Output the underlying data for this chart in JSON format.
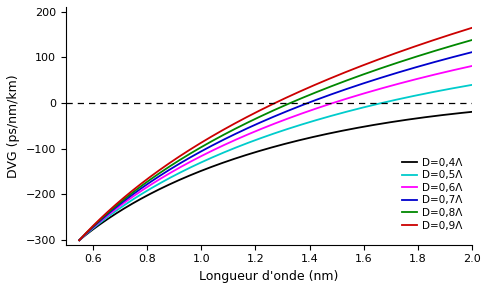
{
  "xlabel": "Longueur d'onde (nm)",
  "ylabel": "DVG (ps/nm/km)",
  "xlim": [
    0.5,
    2.0
  ],
  "ylim": [
    -310,
    210
  ],
  "yticks": [
    -300,
    -200,
    -100,
    0,
    100,
    200
  ],
  "xticks": [
    0.6,
    0.8,
    1.0,
    1.2,
    1.4,
    1.6,
    1.8,
    2.0
  ],
  "series": [
    {
      "label": "D=0,4Λ",
      "color": "#000000",
      "D": 0.4
    },
    {
      "label": "D=0,5Λ",
      "color": "#00cccc",
      "D": 0.5
    },
    {
      "label": "D=0,6Λ",
      "color": "#ff00ff",
      "D": 0.6
    },
    {
      "label": "D=0,7Λ",
      "color": "#0000cd",
      "D": 0.7
    },
    {
      "label": "D=0,8Λ",
      "color": "#008800",
      "D": 0.8
    },
    {
      "label": "D=0,9Λ",
      "color": "#cc0000",
      "D": 0.9
    }
  ],
  "x_start": 0.55,
  "x_end": 2.0,
  "n_points": 600,
  "background_color": "#ffffff",
  "legend_fontsize": 7.5,
  "axis_fontsize": 9,
  "tick_fontsize": 8,
  "curve_params": {
    "0.4": {
      "A": 300,
      "B": -56,
      "lam0": 0.545,
      "C": -12.0
    },
    "0.5": {
      "A": 310,
      "B": -30,
      "lam0": 0.54,
      "C": -8.0
    },
    "0.6": {
      "A": 320,
      "B": -14,
      "lam0": 0.537,
      "C": -5.5
    },
    "0.7": {
      "A": 330,
      "B": -5,
      "lam0": 0.535,
      "C": -3.5
    },
    "0.8": {
      "A": 338,
      "B": 4,
      "lam0": 0.533,
      "C": -2.0
    },
    "0.9": {
      "A": 348,
      "B": 12,
      "lam0": 0.53,
      "C": -1.0
    }
  }
}
